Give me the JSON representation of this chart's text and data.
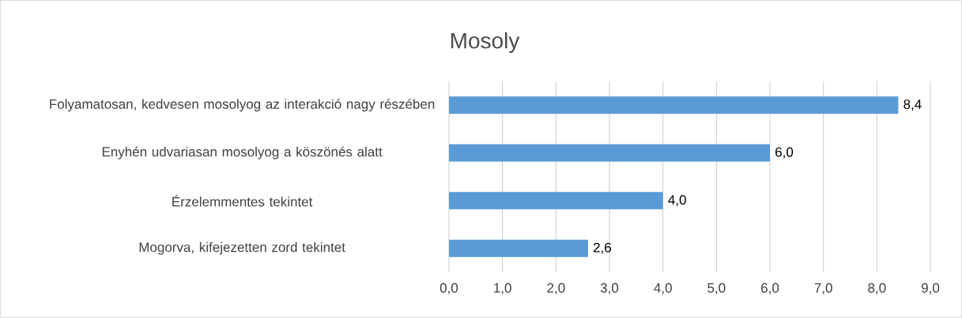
{
  "chart_data": {
    "type": "bar",
    "orientation": "horizontal",
    "title": "Mosoly",
    "categories": [
      "Folyamatosan, kedvesen mosolyog az interakció nagy részében",
      "Enyhén udvariasan mosolyog a köszönés alatt",
      "Érzelemmentes tekintet",
      "Mogorva, kifejezetten zord tekintet"
    ],
    "values": [
      8.4,
      6.0,
      4.0,
      2.6
    ],
    "value_labels": [
      "8,4",
      "6,0",
      "4,0",
      "2,6"
    ],
    "color": "#5b9bd5",
    "xlim": [
      0,
      9
    ],
    "xticks": [
      {
        "value": 0,
        "label": "0,0"
      },
      {
        "value": 1,
        "label": "1,0"
      },
      {
        "value": 2,
        "label": "2,0"
      },
      {
        "value": 3,
        "label": "3,0"
      },
      {
        "value": 4,
        "label": "4,0"
      },
      {
        "value": 5,
        "label": "5,0"
      },
      {
        "value": 6,
        "label": "6,0"
      },
      {
        "value": 7,
        "label": "7,0"
      },
      {
        "value": 8,
        "label": "8,0"
      },
      {
        "value": 9,
        "label": "9,0"
      }
    ],
    "grid": "x"
  }
}
